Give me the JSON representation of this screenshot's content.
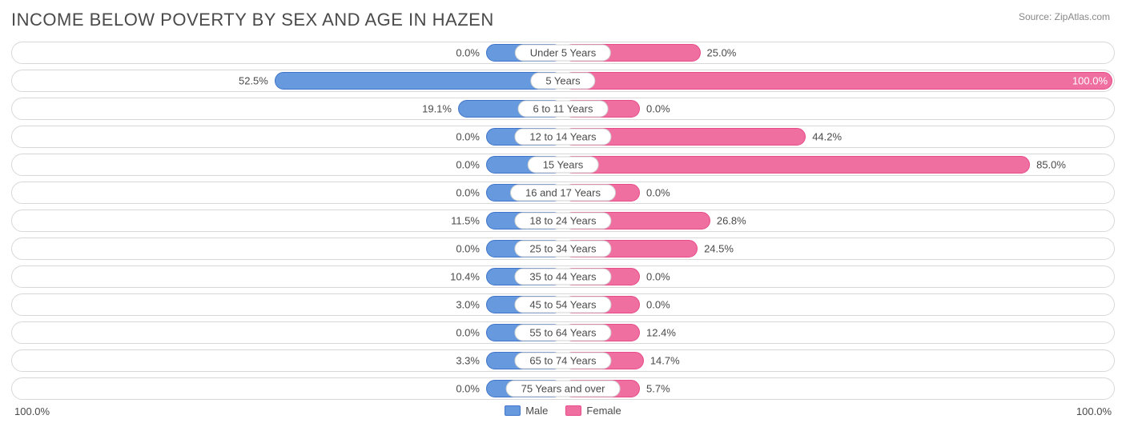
{
  "title": "INCOME BELOW POVERTY BY SEX AND AGE IN HAZEN",
  "source": "Source: ZipAtlas.com",
  "axis": {
    "left": "100.0%",
    "right": "100.0%"
  },
  "legend": {
    "male": "Male",
    "female": "Female"
  },
  "colors": {
    "male_fill": "#6699dd",
    "male_stroke": "#3f74c9",
    "female_fill": "#ef6fa0",
    "female_stroke": "#e84b8a",
    "row_border": "#d8d8d8",
    "text": "#4a4a4a",
    "background": "#ffffff"
  },
  "min_bar_pct": 14,
  "rows": [
    {
      "label": "Under 5 Years",
      "male": 0.0,
      "male_txt": "0.0%",
      "female": 25.0,
      "female_txt": "25.0%"
    },
    {
      "label": "5 Years",
      "male": 52.5,
      "male_txt": "52.5%",
      "female": 100.0,
      "female_txt": "100.0%"
    },
    {
      "label": "6 to 11 Years",
      "male": 19.1,
      "male_txt": "19.1%",
      "female": 0.0,
      "female_txt": "0.0%"
    },
    {
      "label": "12 to 14 Years",
      "male": 0.0,
      "male_txt": "0.0%",
      "female": 44.2,
      "female_txt": "44.2%"
    },
    {
      "label": "15 Years",
      "male": 0.0,
      "male_txt": "0.0%",
      "female": 85.0,
      "female_txt": "85.0%"
    },
    {
      "label": "16 and 17 Years",
      "male": 0.0,
      "male_txt": "0.0%",
      "female": 0.0,
      "female_txt": "0.0%"
    },
    {
      "label": "18 to 24 Years",
      "male": 11.5,
      "male_txt": "11.5%",
      "female": 26.8,
      "female_txt": "26.8%"
    },
    {
      "label": "25 to 34 Years",
      "male": 0.0,
      "male_txt": "0.0%",
      "female": 24.5,
      "female_txt": "24.5%"
    },
    {
      "label": "35 to 44 Years",
      "male": 10.4,
      "male_txt": "10.4%",
      "female": 0.0,
      "female_txt": "0.0%"
    },
    {
      "label": "45 to 54 Years",
      "male": 3.0,
      "male_txt": "3.0%",
      "female": 0.0,
      "female_txt": "0.0%"
    },
    {
      "label": "55 to 64 Years",
      "male": 0.0,
      "male_txt": "0.0%",
      "female": 12.4,
      "female_txt": "12.4%"
    },
    {
      "label": "65 to 74 Years",
      "male": 3.3,
      "male_txt": "3.3%",
      "female": 14.7,
      "female_txt": "14.7%"
    },
    {
      "label": "75 Years and over",
      "male": 0.0,
      "male_txt": "0.0%",
      "female": 5.7,
      "female_txt": "5.7%"
    }
  ]
}
